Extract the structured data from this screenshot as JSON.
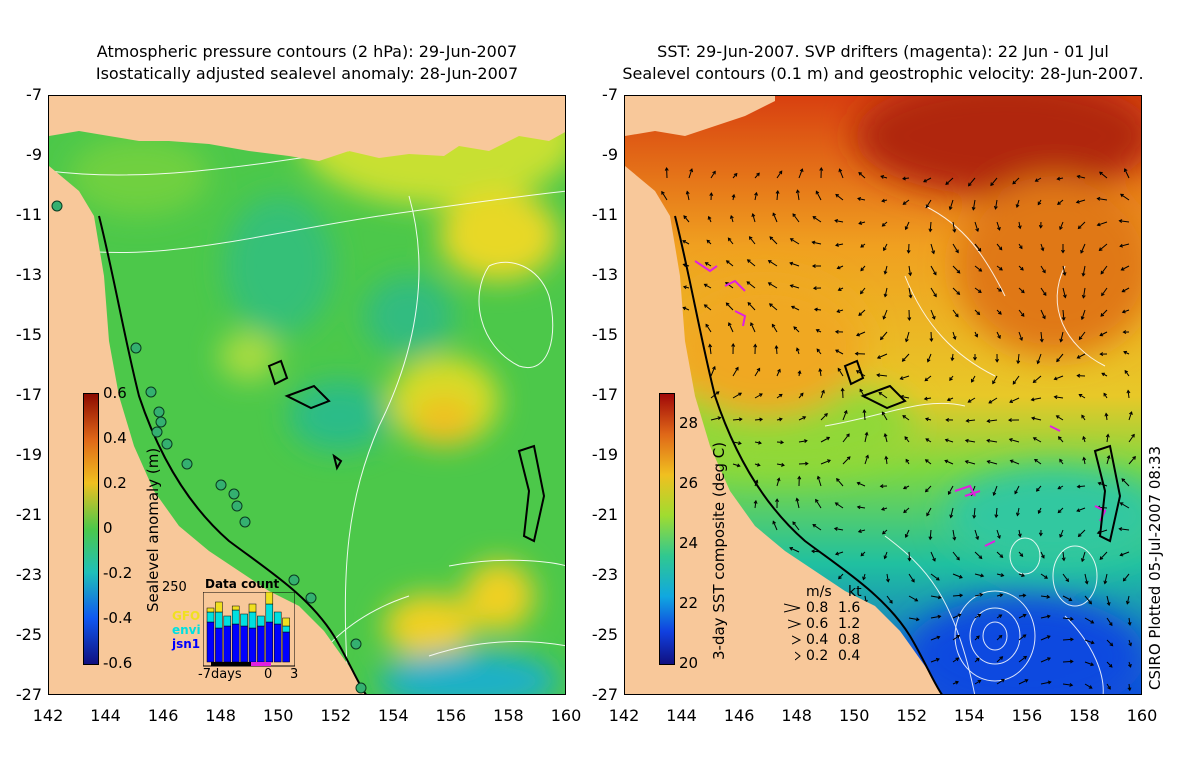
{
  "left_map": {
    "title_line1": "Atmospheric pressure contours (2 hPa): 29-Jun-2007",
    "title_line2": "Isostatically adjusted sealevel anomaly: 28-Jun-2007",
    "colorbar_label": "Sealevel anomaly (m)",
    "colorbar_ticks": [
      "0.6",
      "0.4",
      "0.2",
      "0",
      "-0.2",
      "-0.4",
      "-0.6"
    ],
    "colorbar_range": [
      -0.6,
      0.6
    ],
    "data_count": {
      "title": "Data count",
      "max_label": "250",
      "satellites": [
        {
          "name": "GFO",
          "color": "#f0e020"
        },
        {
          "name": "envi",
          "color": "#00e0e0"
        },
        {
          "name": "jsn1",
          "color": "#0000ff"
        }
      ],
      "x_labels": [
        "-7days",
        "0",
        "3"
      ]
    }
  },
  "right_map": {
    "title_line1": "SST: 29-Jun-2007. SVP drifters (magenta): 22 Jun - 01 Jul",
    "title_line2": "Sealevel contours (0.1 m) and geostrophic velocity: 28-Jun-2007.",
    "colorbar_label": "3-day SST composite (deg C)",
    "colorbar_ticks": [
      "28",
      "26",
      "24",
      "22",
      "20"
    ],
    "colorbar_range": [
      20,
      29
    ],
    "scale_header_ms": "m/s",
    "scale_header_kt": "kt",
    "scale_rows": [
      {
        "ms": "0.8",
        "kt": "1.6"
      },
      {
        "ms": "0.6",
        "kt": "1.2"
      },
      {
        "ms": "0.4",
        "kt": "0.8"
      },
      {
        "ms": "0.2",
        "kt": "0.4"
      }
    ],
    "credit": "CSIRO Plotted 05-Jul-2007 08:33"
  },
  "axes": {
    "lat_ticks": [
      "-7",
      "-9",
      "-11",
      "-13",
      "-15",
      "-17",
      "-19",
      "-21",
      "-23",
      "-25",
      "-27"
    ],
    "lon_ticks": [
      "142",
      "144",
      "146",
      "148",
      "150",
      "152",
      "154",
      "156",
      "158",
      "160"
    ],
    "lat_range": [
      -27,
      -7
    ],
    "lon_range": [
      142,
      160
    ]
  },
  "colors": {
    "land": "#f8c89a",
    "ssh_base": "#4cc84a",
    "sst_warm": "#f0a020",
    "sst_mid": "#38d080",
    "sst_cool": "#1060e0",
    "drifter": "#e020e0"
  }
}
